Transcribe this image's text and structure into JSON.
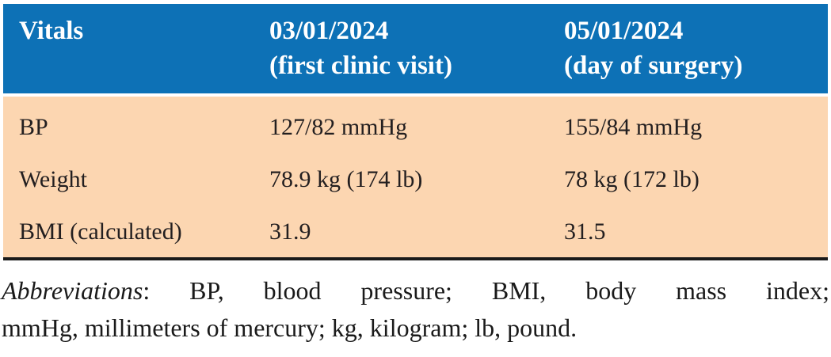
{
  "table": {
    "header": {
      "col1": "Vitals",
      "col2_line1": "03/01/2024",
      "col2_line2": "(first clinic visit)",
      "col3_line1": "05/01/2024",
      "col3_line2": "(day of surgery)"
    },
    "rows": [
      {
        "label": "BP",
        "first_visit": "127/82 mmHg",
        "surgery_day": "155/84 mmHg"
      },
      {
        "label": "Weight",
        "first_visit": "78.9 kg (174 lb)",
        "surgery_day": "78 kg (172 lb)"
      },
      {
        "label": "BMI (calculated)",
        "first_visit": "31.9",
        "surgery_day": "31.5"
      }
    ]
  },
  "footnote": {
    "line1_lead": "Abbreviations",
    "line1_rest": ": BP, blood pressure; BMI, body mass index;",
    "line2": "mmHg, millimeters of mercury; kg, kilogram; lb, pound."
  },
  "colors": {
    "header_bg": "#0d71b6",
    "header_text": "#ffffff",
    "body_bg": "#fcd6b1",
    "body_text": "#231f20",
    "bottom_border": "#1a1a1a"
  }
}
